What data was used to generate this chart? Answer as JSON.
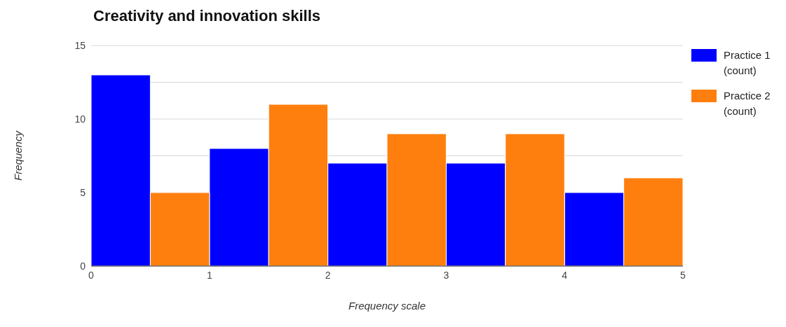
{
  "chart_data": {
    "type": "histogram",
    "title": "Creativity and innovation skills",
    "xlabel": "Frequency scale",
    "ylabel": "Frequency",
    "bins": [
      0,
      0.5,
      1,
      1.5,
      2,
      2.5,
      3,
      3.5,
      4,
      4.5,
      5
    ],
    "series": [
      {
        "name": "Practice 1 (count)",
        "color": "#0000ff",
        "values": [
          13,
          null,
          8,
          null,
          7,
          null,
          7,
          null,
          5,
          null
        ]
      },
      {
        "name": "Practice 2 (count)",
        "color": "#ff7f0e",
        "values": [
          null,
          5,
          null,
          11,
          null,
          9,
          null,
          9,
          null,
          6
        ]
      }
    ],
    "xlim": [
      0,
      5
    ],
    "xticks": [
      0,
      1,
      2,
      3,
      4,
      5
    ],
    "ylim": [
      0,
      15
    ],
    "yticks": [
      0,
      5,
      {
        "value": 7.5,
        "label": null
      },
      10,
      {
        "value": 12.5,
        "label": null
      },
      15
    ],
    "grid": "y",
    "legend": "right"
  }
}
